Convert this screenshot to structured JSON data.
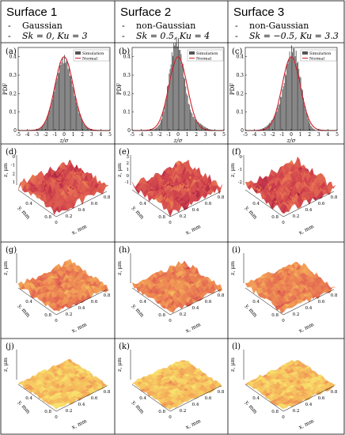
{
  "columns": [
    {
      "title": "Surface 1",
      "line1": "Gaussian",
      "line2": "Sk = 0, Ku = 3"
    },
    {
      "title": "Surface 2",
      "line1": "non-Gaussian",
      "line2": "Sk = 0.5, Ku = 4"
    },
    {
      "title": "Surface 3",
      "line1": "non-Gaussian",
      "line2": "Sk = −0.5, Ku = 3.3"
    }
  ],
  "bullet": "-",
  "panel_letters": [
    "(a)",
    "(b)",
    "(c)",
    "(d)",
    "(e)",
    "(f)",
    "(g)",
    "(h)",
    "(i)",
    "(j)",
    "(k)",
    "(l)"
  ],
  "chart_data": [
    {
      "type": "bar",
      "panel": "(a)",
      "xlabel": "z/σ",
      "ylabel": "PDF",
      "xlim": [
        -5,
        5
      ],
      "ylim": [
        0,
        0.45
      ],
      "xticks": [
        "-5",
        "-4",
        "-3",
        "-2",
        "-1",
        "0",
        "1",
        "2",
        "3",
        "4",
        "5"
      ],
      "yticks": [
        "0",
        "0.1",
        "0.2",
        "0.3",
        "0.4"
      ],
      "legend_placement": "top-right",
      "series": [
        {
          "name": "Simulation",
          "kind": "histogram"
        },
        {
          "name": "Normal",
          "kind": "line"
        }
      ],
      "sk": 0,
      "ku": 3,
      "peak": 0.4
    },
    {
      "type": "bar",
      "panel": "(b)",
      "xlabel": "z/σ",
      "ylabel": "PDF",
      "xlim": [
        -5,
        5
      ],
      "ylim": [
        0,
        0.45
      ],
      "xticks": [
        "-5",
        "-4",
        "-3",
        "-2",
        "-1",
        "0",
        "1",
        "2",
        "3",
        "4",
        "5"
      ],
      "yticks": [
        "0",
        "0.1",
        "0.2",
        "0.3",
        "0.4"
      ],
      "legend_placement": "top-right",
      "series": [
        {
          "name": "Simulation",
          "kind": "histogram"
        },
        {
          "name": "Normal",
          "kind": "line"
        }
      ],
      "sk": 0.5,
      "ku": 4,
      "peak": 0.44
    },
    {
      "type": "bar",
      "panel": "(c)",
      "xlabel": "z/σ",
      "ylabel": "PDF",
      "xlim": [
        -5,
        5
      ],
      "ylim": [
        0,
        0.45
      ],
      "xticks": [
        "-5",
        "-4",
        "-3",
        "-2",
        "-1",
        "0",
        "1",
        "2",
        "3",
        "4",
        "5"
      ],
      "yticks": [
        "0",
        "0.1",
        "0.2",
        "0.3",
        "0.4"
      ],
      "legend_placement": "top-right",
      "series": [
        {
          "name": "Simulation",
          "kind": "histogram"
        },
        {
          "name": "Normal",
          "kind": "line"
        }
      ],
      "sk": -0.5,
      "ku": 3.3,
      "peak": 0.43
    }
  ],
  "surface_axes": {
    "x_label": "x, mm",
    "y_label": "y, mm",
    "z_label": "z, μm",
    "x_ticks": [
      "0",
      "0.2",
      "0.4",
      "0.6",
      "0.8"
    ],
    "y_ticks": [
      "0",
      "0.2",
      "0.4",
      "0.6",
      "0.8"
    ],
    "z_ticks_d": [
      "0",
      "-1",
      "2",
      "1"
    ],
    "z_ticks_e": [
      "3",
      "2",
      "1",
      "0",
      "-1"
    ],
    "z_ticks_f": [
      "0",
      "-1",
      "-2"
    ],
    "colormap": [
      "#8b1a3a",
      "#c8364a",
      "#e0604f",
      "#ee8a52",
      "#f5b85a",
      "#f8e06a"
    ]
  }
}
